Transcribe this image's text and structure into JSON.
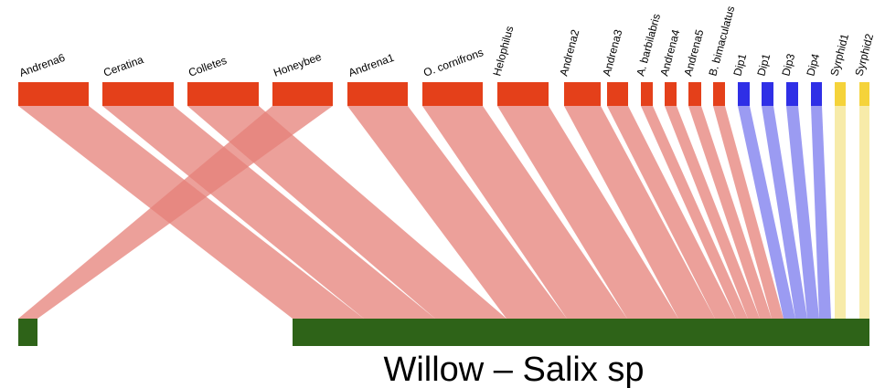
{
  "title": "Willow – Salix sp",
  "colors": {
    "bee": "#e4401a",
    "bee_link": "#e68078",
    "dip": "#2f2fe6",
    "dip_link": "#8a8af0",
    "syrphid": "#f5d33a",
    "syrphid_link": "#f6e79a",
    "plant": "#2e6318"
  },
  "pollinators": [
    {
      "label": "Andrena6",
      "group": "bee"
    },
    {
      "label": "Ceratina",
      "group": "bee"
    },
    {
      "label": "Colletes",
      "group": "bee"
    },
    {
      "label": "Honeybee",
      "group": "bee"
    },
    {
      "label": "Andrena1",
      "group": "bee"
    },
    {
      "label": "O. cornifrons",
      "group": "bee"
    },
    {
      "label": "Helophilus",
      "group": "bee"
    },
    {
      "label": "Andrena2",
      "group": "bee"
    },
    {
      "label": "Andrena3",
      "group": "bee"
    },
    {
      "label": "A. barbilabris",
      "group": "bee"
    },
    {
      "label": "Andrena4",
      "group": "bee"
    },
    {
      "label": "Andrena5",
      "group": "bee"
    },
    {
      "label": "B. bimaculatus",
      "group": "bee"
    },
    {
      "label": "Dip1",
      "group": "dip"
    },
    {
      "label": "Dip1",
      "group": "dip"
    },
    {
      "label": "Dip3",
      "group": "dip"
    },
    {
      "label": "Dip4",
      "group": "dip"
    },
    {
      "label": "Syrphid1",
      "group": "syrphid"
    },
    {
      "label": "Syrphid2",
      "group": "syrphid"
    }
  ]
}
